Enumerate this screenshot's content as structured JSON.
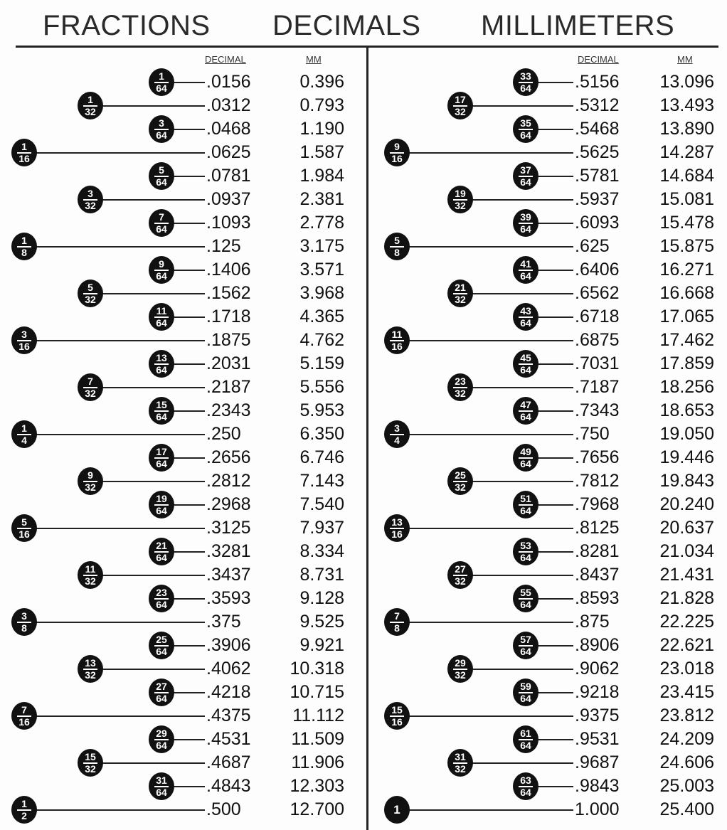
{
  "headers": {
    "fractions": "FRACTIONS",
    "decimals": "DECIMALS",
    "millimeters": "MILLIMETERS"
  },
  "column_labels": {
    "decimal": "DECIMAL",
    "mm": "MM"
  },
  "left": [
    {
      "num": "1",
      "den": "64",
      "decimal": ".0156",
      "mm": "0.396"
    },
    {
      "num": "1",
      "den": "32",
      "decimal": ".0312",
      "mm": "0.793"
    },
    {
      "num": "3",
      "den": "64",
      "decimal": ".0468",
      "mm": "1.190"
    },
    {
      "num": "1",
      "den": "16",
      "decimal": ".0625",
      "mm": "1.587"
    },
    {
      "num": "5",
      "den": "64",
      "decimal": ".0781",
      "mm": "1.984"
    },
    {
      "num": "3",
      "den": "32",
      "decimal": ".0937",
      "mm": "2.381"
    },
    {
      "num": "7",
      "den": "64",
      "decimal": ".1093",
      "mm": "2.778"
    },
    {
      "num": "1",
      "den": "8",
      "decimal": ".125",
      "mm": "3.175"
    },
    {
      "num": "9",
      "den": "64",
      "decimal": ".1406",
      "mm": "3.571"
    },
    {
      "num": "5",
      "den": "32",
      "decimal": ".1562",
      "mm": "3.968"
    },
    {
      "num": "11",
      "den": "64",
      "decimal": ".1718",
      "mm": "4.365"
    },
    {
      "num": "3",
      "den": "16",
      "decimal": ".1875",
      "mm": "4.762"
    },
    {
      "num": "13",
      "den": "64",
      "decimal": ".2031",
      "mm": "5.159"
    },
    {
      "num": "7",
      "den": "32",
      "decimal": ".2187",
      "mm": "5.556"
    },
    {
      "num": "15",
      "den": "64",
      "decimal": ".2343",
      "mm": "5.953"
    },
    {
      "num": "1",
      "den": "4",
      "decimal": ".250",
      "mm": "6.350"
    },
    {
      "num": "17",
      "den": "64",
      "decimal": ".2656",
      "mm": "6.746"
    },
    {
      "num": "9",
      "den": "32",
      "decimal": ".2812",
      "mm": "7.143"
    },
    {
      "num": "19",
      "den": "64",
      "decimal": ".2968",
      "mm": "7.540"
    },
    {
      "num": "5",
      "den": "16",
      "decimal": ".3125",
      "mm": "7.937"
    },
    {
      "num": "21",
      "den": "64",
      "decimal": ".3281",
      "mm": "8.334"
    },
    {
      "num": "11",
      "den": "32",
      "decimal": ".3437",
      "mm": "8.731"
    },
    {
      "num": "23",
      "den": "64",
      "decimal": ".3593",
      "mm": "9.128"
    },
    {
      "num": "3",
      "den": "8",
      "decimal": ".375",
      "mm": "9.525"
    },
    {
      "num": "25",
      "den": "64",
      "decimal": ".3906",
      "mm": "9.921"
    },
    {
      "num": "13",
      "den": "32",
      "decimal": ".4062",
      "mm": "10.318"
    },
    {
      "num": "27",
      "den": "64",
      "decimal": ".4218",
      "mm": "10.715"
    },
    {
      "num": "7",
      "den": "16",
      "decimal": ".4375",
      "mm": "11.112"
    },
    {
      "num": "29",
      "den": "64",
      "decimal": ".4531",
      "mm": "11.509"
    },
    {
      "num": "15",
      "den": "32",
      "decimal": ".4687",
      "mm": "11.906"
    },
    {
      "num": "31",
      "den": "64",
      "decimal": ".4843",
      "mm": "12.303"
    },
    {
      "num": "1",
      "den": "2",
      "decimal": ".500",
      "mm": "12.700"
    }
  ],
  "right": [
    {
      "num": "33",
      "den": "64",
      "decimal": ".5156",
      "mm": "13.096"
    },
    {
      "num": "17",
      "den": "32",
      "decimal": ".5312",
      "mm": "13.493"
    },
    {
      "num": "35",
      "den": "64",
      "decimal": ".5468",
      "mm": "13.890"
    },
    {
      "num": "9",
      "den": "16",
      "decimal": ".5625",
      "mm": "14.287"
    },
    {
      "num": "37",
      "den": "64",
      "decimal": ".5781",
      "mm": "14.684"
    },
    {
      "num": "19",
      "den": "32",
      "decimal": ".5937",
      "mm": "15.081"
    },
    {
      "num": "39",
      "den": "64",
      "decimal": ".6093",
      "mm": "15.478"
    },
    {
      "num": "5",
      "den": "8",
      "decimal": ".625",
      "mm": "15.875"
    },
    {
      "num": "41",
      "den": "64",
      "decimal": ".6406",
      "mm": "16.271"
    },
    {
      "num": "21",
      "den": "32",
      "decimal": ".6562",
      "mm": "16.668"
    },
    {
      "num": "43",
      "den": "64",
      "decimal": ".6718",
      "mm": "17.065"
    },
    {
      "num": "11",
      "den": "16",
      "decimal": ".6875",
      "mm": "17.462"
    },
    {
      "num": "45",
      "den": "64",
      "decimal": ".7031",
      "mm": "17.859"
    },
    {
      "num": "23",
      "den": "32",
      "decimal": ".7187",
      "mm": "18.256"
    },
    {
      "num": "47",
      "den": "64",
      "decimal": ".7343",
      "mm": "18.653"
    },
    {
      "num": "3",
      "den": "4",
      "decimal": ".750",
      "mm": "19.050"
    },
    {
      "num": "49",
      "den": "64",
      "decimal": ".7656",
      "mm": "19.446"
    },
    {
      "num": "25",
      "den": "32",
      "decimal": ".7812",
      "mm": "19.843"
    },
    {
      "num": "51",
      "den": "64",
      "decimal": ".7968",
      "mm": "20.240"
    },
    {
      "num": "13",
      "den": "16",
      "decimal": ".8125",
      "mm": "20.637"
    },
    {
      "num": "53",
      "den": "64",
      "decimal": ".8281",
      "mm": "21.034"
    },
    {
      "num": "27",
      "den": "32",
      "decimal": ".8437",
      "mm": "21.431"
    },
    {
      "num": "55",
      "den": "64",
      "decimal": ".8593",
      "mm": "21.828"
    },
    {
      "num": "7",
      "den": "8",
      "decimal": ".875",
      "mm": "22.225"
    },
    {
      "num": "57",
      "den": "64",
      "decimal": ".8906",
      "mm": "22.621"
    },
    {
      "num": "29",
      "den": "32",
      "decimal": ".9062",
      "mm": "23.018"
    },
    {
      "num": "59",
      "den": "64",
      "decimal": ".9218",
      "mm": "23.415"
    },
    {
      "num": "15",
      "den": "16",
      "decimal": ".9375",
      "mm": "23.812"
    },
    {
      "num": "61",
      "den": "64",
      "decimal": ".9531",
      "mm": "24.209"
    },
    {
      "num": "31",
      "den": "32",
      "decimal": ".9687",
      "mm": "24.606"
    },
    {
      "num": "63",
      "den": "64",
      "decimal": ".9843",
      "mm": "25.003"
    },
    {
      "num": "1",
      "den": "",
      "decimal": "1.000",
      "mm": "25.400"
    }
  ]
}
